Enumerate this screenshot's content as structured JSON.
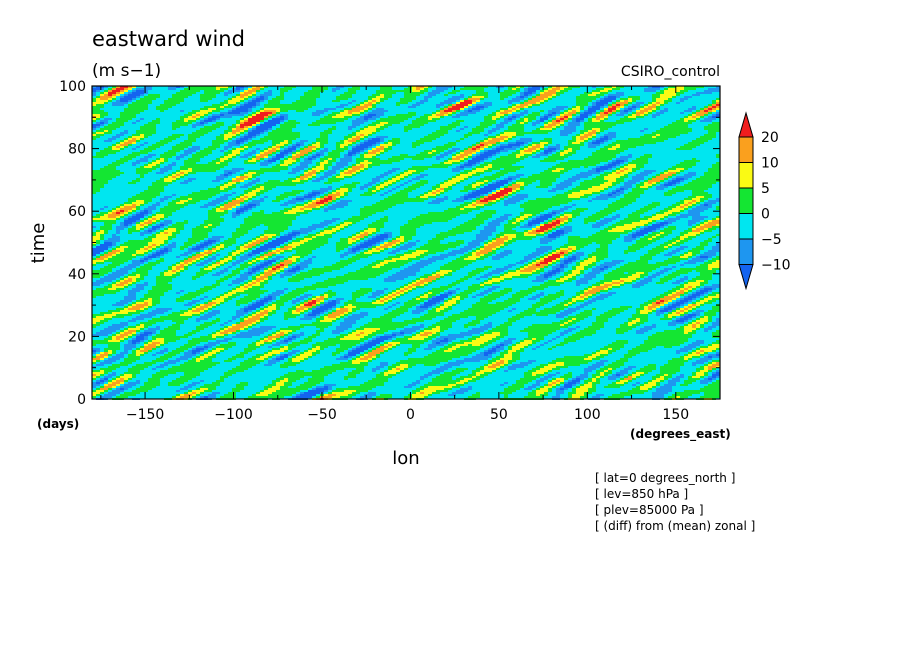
{
  "chart_data": {
    "type": "heatmap",
    "title": "eastward wind",
    "units": "(m s−1)",
    "model_label": "CSIRO_control",
    "xlabel": "lon",
    "ylabel": "time",
    "x_units": "(degrees_east)",
    "y_units": "(days)",
    "xlim": [
      -180,
      175
    ],
    "ylim": [
      0,
      100
    ],
    "x_ticks": [
      -150,
      -100,
      -50,
      0,
      50,
      100,
      150
    ],
    "y_ticks": [
      0,
      20,
      40,
      60,
      80,
      100
    ],
    "contour_levels": [
      -10,
      -5,
      0,
      5,
      10,
      20
    ],
    "colorbar_labels": [
      "20",
      "10",
      "5",
      "0",
      "−5",
      "−10"
    ],
    "color_bands": [
      {
        "range": "< -10",
        "color": "#1464f0"
      },
      {
        "range": "-10 to -5",
        "color": "#1e96f0"
      },
      {
        "range": "-5 to 0",
        "color": "#00e6f0"
      },
      {
        "range": "0 to 5",
        "color": "#14e632"
      },
      {
        "range": "5 to 10",
        "color": "#fafa14"
      },
      {
        "range": "10 to 20",
        "color": "#faa01e"
      },
      {
        "range": "> 20",
        "color": "#f01e1e"
      }
    ],
    "dominant_band": "-5 to 0",
    "notes": [
      "[ lat=0 degrees_north ]",
      "[ lev=850 hPa ]",
      "[ plev=85000 Pa ]",
      "[ (diff) from (mean) zonal ]"
    ]
  }
}
